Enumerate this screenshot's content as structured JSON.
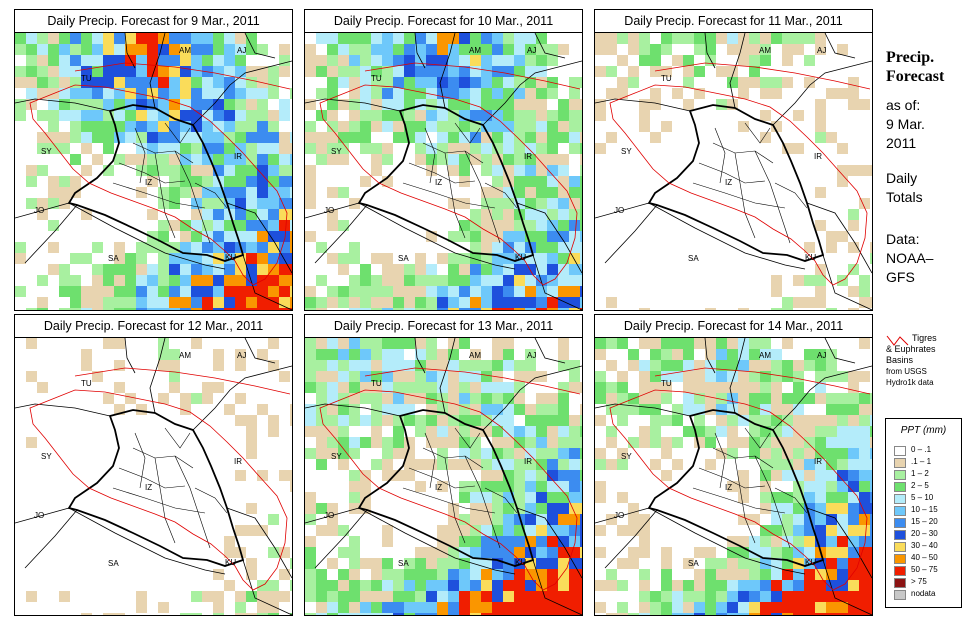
{
  "panels": [
    {
      "title": "Daily Precip. Forecast for  9 Mar., 2011",
      "seed": 11,
      "intensity": [
        0.35,
        0.95,
        0.85,
        0.55
      ]
    },
    {
      "title": "Daily Precip. Forecast for  10 Mar., 2011",
      "seed": 23,
      "intensity": [
        0.3,
        0.8,
        0.45,
        0.75
      ]
    },
    {
      "title": "Daily Precip. Forecast for  11 Mar., 2011",
      "seed": 37,
      "intensity": [
        0.15,
        0.35,
        0.1,
        0.25
      ]
    },
    {
      "title": "Daily Precip. Forecast for  12 Mar., 2011",
      "seed": 41,
      "intensity": [
        0.05,
        0.2,
        0.05,
        0.35
      ]
    },
    {
      "title": "Daily Precip. Forecast for  13 Mar., 2011",
      "seed": 53,
      "intensity": [
        0.45,
        0.2,
        0.8,
        0.85
      ]
    },
    {
      "title": "Daily Precip. Forecast for  14 Mar., 2011",
      "seed": 67,
      "intensity": [
        0.3,
        0.35,
        0.95,
        0.6
      ]
    }
  ],
  "map_labels": [
    "AM",
    "AJ",
    "TU",
    "SY",
    "IR",
    "IZ",
    "JO",
    "SA",
    "KU"
  ],
  "sidebar": {
    "title_line1": "Precip.",
    "title_line2": "Forecast",
    "asof_line1": "as of:",
    "asof_line2": "9 Mar.",
    "asof_line3": "2011",
    "totals_line1": "Daily",
    "totals_line2": "Totals",
    "data_line1": "Data:",
    "data_line2": "NOAA–",
    "data_line3": "GFS"
  },
  "basin_note": {
    "line1": "Tigres",
    "line2": "& Euphrates",
    "line3": "Basins",
    "line4": "from USGS",
    "line5": "Hydro1k data",
    "color": "#e00000"
  },
  "legend": {
    "title": "PPT (mm)",
    "items": [
      {
        "label": "0 – .1",
        "color": "#ffffff"
      },
      {
        "label": ".1 – 1",
        "color": "#e8d4b0"
      },
      {
        "label": "1 – 2",
        "color": "#a8f0a0"
      },
      {
        "label": "2 – 5",
        "color": "#6ee06e"
      },
      {
        "label": "5 – 10",
        "color": "#b4ecfa"
      },
      {
        "label": "10 – 15",
        "color": "#6ec8fa"
      },
      {
        "label": "15 – 20",
        "color": "#3c8cf0"
      },
      {
        "label": "20 – 30",
        "color": "#1e50dc"
      },
      {
        "label": "30 – 40",
        "color": "#fadc5a"
      },
      {
        "label": "40 – 50",
        "color": "#fa9600"
      },
      {
        "label": "50 – 75",
        "color": "#f01e00"
      },
      {
        "label": "> 75",
        "color": "#8c1414"
      },
      {
        "label": "nodata",
        "color": "#c8c8c8"
      }
    ]
  }
}
